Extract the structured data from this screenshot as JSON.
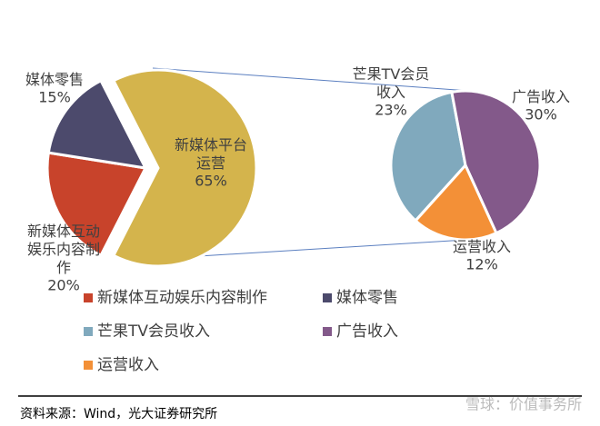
{
  "chart_data": {
    "type": "pie_of_pie",
    "pies": [
      {
        "categories": [
          "新媒体平台运营",
          "新媒体互动娱乐内容制作",
          "媒体零售"
        ],
        "values": [
          65,
          20,
          15
        ],
        "value_labels": [
          "65%",
          "20%",
          "15%"
        ],
        "colors": [
          "#d4b44c",
          "#c8432b",
          "#4c4a6c"
        ]
      },
      {
        "categories": [
          "芒果TV会员收入",
          "广告收入",
          "运营收入"
        ],
        "values": [
          23,
          30,
          12
        ],
        "value_labels": [
          "23%",
          "30%",
          "12%"
        ],
        "colors": [
          "#80a9bd",
          "#83598a",
          "#f39037"
        ]
      }
    ]
  },
  "source": "资料来源：Wind，光大证券研究所",
  "watermark": "雪球：价值事务所"
}
